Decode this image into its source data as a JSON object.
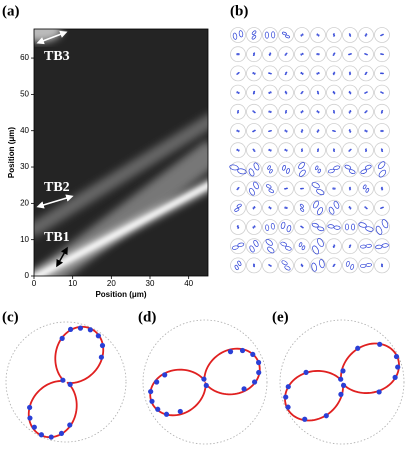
{
  "chart_data": [
    {
      "type": "heatmap",
      "label": "(a)",
      "x_label": "Position (μm)",
      "y_label": "Position (μm)",
      "xlim": [
        0,
        45
      ],
      "ylim": [
        0,
        68
      ],
      "xticks": [
        0,
        10,
        20,
        30,
        40
      ],
      "yticks": [
        0,
        10,
        20,
        30,
        40,
        50,
        60
      ],
      "annotations": [
        "TB1",
        "TB2",
        "TB3"
      ]
    },
    {
      "type": "polar-grid",
      "label": "(b)"
    },
    {
      "type": "polar",
      "label": "(c)",
      "rlim": [
        0,
        1
      ],
      "fit": {
        "color": "#e02020",
        "angle": 65,
        "amplitude": 0.95,
        "offset": 0.03
      },
      "points": {
        "color": "#2a3fd6",
        "theta": [
          65,
          55,
          75,
          45,
          85,
          35,
          95,
          245,
          235,
          255,
          225,
          265,
          215,
          275,
          150,
          330
        ],
        "r": [
          0.96,
          0.94,
          0.93,
          0.86,
          0.88,
          0.72,
          0.73,
          0.97,
          0.92,
          0.95,
          0.85,
          0.86,
          0.74,
          0.72,
          0.06,
          0.08
        ]
      }
    },
    {
      "type": "polar",
      "label": "(d)",
      "rlim": [
        0,
        1
      ],
      "fit": {
        "color": "#e02020",
        "angle": 20,
        "amplitude": 0.9,
        "offset": 0.02
      },
      "points": {
        "color": "#2a3fd6",
        "theta": [
          20,
          10,
          30,
          0,
          40,
          350,
          50,
          200,
          190,
          210,
          180,
          220,
          170,
          230,
          110,
          290
        ],
        "r": [
          0.92,
          0.88,
          0.89,
          0.8,
          0.79,
          0.64,
          0.64,
          0.91,
          0.89,
          0.88,
          0.78,
          0.81,
          0.66,
          0.62,
          0.05,
          0.06
        ]
      }
    },
    {
      "type": "polar",
      "label": "(e)",
      "rlim": [
        0,
        1
      ],
      "fit": {
        "color": "#e02020",
        "angle": 25,
        "amplitude": 0.95,
        "offset": 0.03
      },
      "points": {
        "color": "#2a3fd6",
        "theta": [
          25,
          5,
          45,
          345,
          65,
          85,
          205,
          185,
          225,
          165,
          245,
          265,
          115,
          295,
          15,
          195
        ],
        "r": [
          0.97,
          0.86,
          0.86,
          0.62,
          0.6,
          0.18,
          0.96,
          0.87,
          0.85,
          0.6,
          0.6,
          0.2,
          0.05,
          0.06,
          0.93,
          0.94
        ]
      }
    }
  ]
}
